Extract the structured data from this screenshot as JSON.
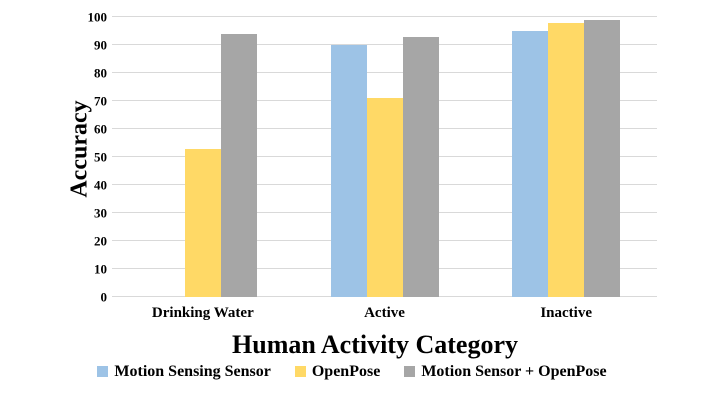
{
  "chart_data": {
    "type": "bar",
    "title": "",
    "categories": [
      "Drinking Water",
      "Active",
      "Inactive"
    ],
    "series": [
      {
        "name": "Motion Sensing Sensor",
        "color": "#9DC3E6",
        "values": [
          0,
          90,
          95
        ]
      },
      {
        "name": "OpenPose",
        "color": "#FFD966",
        "values": [
          53,
          71,
          98
        ]
      },
      {
        "name": "Motion Sensor + OpenPose",
        "color": "#A6A6A6",
        "values": [
          94,
          93,
          99
        ]
      }
    ],
    "xlabel": "Human Activity Category",
    "ylabel": "Accuracy",
    "ylim": [
      0,
      100
    ],
    "yticks": [
      0,
      10,
      20,
      30,
      40,
      50,
      60,
      70,
      80,
      90,
      100
    ],
    "grid": true,
    "gridline_color": "#D9D9D9",
    "legend_position": "bottom",
    "background_color": "#FFFFFF",
    "text_color": "#000000"
  }
}
